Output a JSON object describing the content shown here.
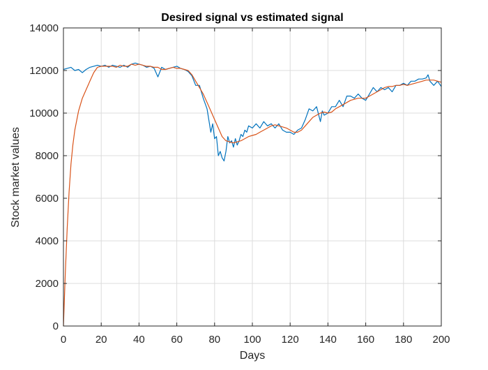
{
  "chart_data": {
    "type": "line",
    "title": "Desired signal vs estimated signal",
    "xlabel": "Days",
    "ylabel": "Stock market values",
    "xlim": [
      0,
      200
    ],
    "ylim": [
      0,
      14000
    ],
    "xticks": [
      "0",
      "20",
      "40",
      "60",
      "80",
      "100",
      "120",
      "140",
      "160",
      "180",
      "200"
    ],
    "yticks": [
      "0",
      "2000",
      "4000",
      "6000",
      "8000",
      "10000",
      "12000",
      "14000"
    ],
    "grid": true,
    "legend": "none",
    "series": [
      {
        "color": "#0072BD",
        "x": [
          0,
          2,
          4,
          6,
          8,
          10,
          12,
          14,
          16,
          18,
          20,
          22,
          24,
          26,
          28,
          30,
          32,
          34,
          36,
          38,
          40,
          42,
          44,
          46,
          48,
          50,
          52,
          54,
          56,
          58,
          60,
          62,
          64,
          66,
          68,
          70,
          72,
          74,
          76,
          78,
          79,
          80,
          81,
          82,
          83,
          84,
          85,
          86,
          87,
          88,
          89,
          90,
          91,
          92,
          93,
          94,
          95,
          96,
          97,
          98,
          100,
          102,
          104,
          106,
          108,
          110,
          112,
          114,
          116,
          118,
          120,
          122,
          124,
          126,
          128,
          130,
          132,
          134,
          136,
          137,
          138,
          140,
          142,
          144,
          146,
          148,
          150,
          152,
          154,
          156,
          158,
          160,
          162,
          164,
          166,
          168,
          170,
          172,
          174,
          176,
          178,
          180,
          182,
          184,
          186,
          188,
          190,
          192,
          193,
          194,
          196,
          198,
          200
        ],
        "y": [
          12050,
          12100,
          12150,
          12000,
          12050,
          11900,
          12050,
          12150,
          12200,
          12250,
          12200,
          12250,
          12150,
          12250,
          12200,
          12150,
          12250,
          12150,
          12300,
          12350,
          12300,
          12250,
          12150,
          12200,
          12100,
          11700,
          12150,
          12050,
          12100,
          12150,
          12200,
          12100,
          12050,
          11950,
          11750,
          11300,
          11300,
          10700,
          10200,
          9100,
          9500,
          8800,
          8900,
          8000,
          8200,
          7900,
          7750,
          8200,
          8900,
          8600,
          8700,
          8400,
          8800,
          8500,
          8700,
          9000,
          8900,
          9200,
          9100,
          9400,
          9300,
          9500,
          9300,
          9600,
          9400,
          9500,
          9300,
          9500,
          9200,
          9100,
          9100,
          9000,
          9200,
          9300,
          9700,
          10200,
          10100,
          10300,
          9600,
          10100,
          9900,
          10000,
          10300,
          10300,
          10600,
          10300,
          10800,
          10800,
          10700,
          10900,
          10700,
          10600,
          10900,
          11200,
          11000,
          11200,
          11100,
          11200,
          11000,
          11300,
          11300,
          11400,
          11300,
          11500,
          11500,
          11600,
          11600,
          11650,
          11800,
          11500,
          11300,
          11500,
          11250
        ]
      },
      {
        "color": "#D95319",
        "x": [
          0,
          1,
          2,
          3,
          4,
          5,
          6,
          8,
          10,
          12,
          14,
          16,
          18,
          20,
          22,
          24,
          26,
          28,
          30,
          32,
          34,
          36,
          38,
          40,
          42,
          44,
          46,
          48,
          50,
          52,
          54,
          56,
          58,
          60,
          62,
          64,
          66,
          68,
          70,
          72,
          74,
          76,
          78,
          80,
          82,
          84,
          86,
          88,
          90,
          92,
          94,
          96,
          98,
          100,
          102,
          104,
          106,
          108,
          110,
          112,
          114,
          116,
          118,
          120,
          122,
          124,
          126,
          128,
          130,
          132,
          134,
          136,
          138,
          140,
          142,
          144,
          146,
          148,
          150,
          152,
          154,
          156,
          158,
          160,
          162,
          164,
          166,
          168,
          170,
          172,
          174,
          176,
          178,
          180,
          182,
          184,
          186,
          188,
          190,
          192,
          194,
          196,
          198,
          200
        ],
        "y": [
          0,
          2500,
          4600,
          6300,
          7600,
          8500,
          9200,
          10100,
          10700,
          11100,
          11500,
          11900,
          12150,
          12200,
          12200,
          12200,
          12200,
          12150,
          12250,
          12200,
          12200,
          12300,
          12250,
          12300,
          12250,
          12200,
          12200,
          12150,
          12150,
          12050,
          12050,
          12100,
          12150,
          12100,
          12100,
          12050,
          12000,
          11800,
          11500,
          11200,
          10900,
          10500,
          10100,
          9700,
          9300,
          8900,
          8700,
          8650,
          8600,
          8650,
          8700,
          8800,
          8900,
          8950,
          9000,
          9100,
          9200,
          9300,
          9400,
          9450,
          9400,
          9350,
          9300,
          9200,
          9100,
          9100,
          9200,
          9400,
          9600,
          9800,
          9900,
          10000,
          10050,
          10000,
          10050,
          10200,
          10300,
          10400,
          10500,
          10600,
          10650,
          10700,
          10700,
          10700,
          10800,
          10900,
          11000,
          11100,
          11200,
          11250,
          11250,
          11300,
          11300,
          11350,
          11300,
          11350,
          11400,
          11450,
          11500,
          11550,
          11550,
          11550,
          11500,
          11450
        ]
      }
    ]
  }
}
